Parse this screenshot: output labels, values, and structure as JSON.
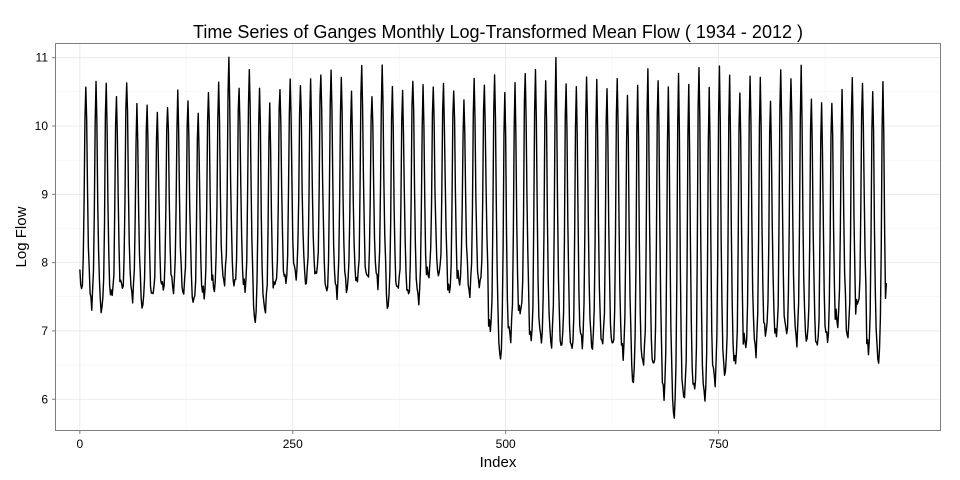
{
  "chart_data": {
    "type": "line",
    "title": "Time Series of Ganges Monthly Log-Transformed Mean Flow ( 1934 - 2012 )",
    "xlabel": "Index",
    "ylabel": "Log Flow",
    "xlim": [
      -28,
      1010
    ],
    "ylim": [
      5.55,
      11.2
    ],
    "x_ticks": [
      0,
      250,
      500,
      750
    ],
    "x_tick_labels": [
      "0",
      "250",
      "500",
      "750"
    ],
    "y_ticks": [
      6,
      7,
      8,
      9,
      10,
      11
    ],
    "y_tick_labels": [
      "6",
      "7",
      "8",
      "9",
      "10",
      "11"
    ],
    "grid": true,
    "series": [
      {
        "n_points": 948,
        "period_months": 12,
        "color": "#000000",
        "annual_peaks": [
          10.6,
          10.6,
          10.6,
          10.45,
          10.7,
          10.25,
          10.3,
          10.2,
          10.35,
          10.45,
          10.35,
          10.2,
          10.55,
          10.6,
          10.95,
          10.6,
          10.85,
          10.55,
          10.25,
          10.6,
          10.7,
          10.6,
          10.6,
          10.8,
          10.85,
          10.7,
          10.45,
          10.9,
          10.5,
          10.85,
          10.55,
          10.5,
          10.75,
          10.55,
          10.55,
          10.6,
          10.6,
          10.35,
          10.65,
          10.6,
          10.8,
          10.5,
          10.55,
          10.8,
          10.85,
          10.7,
          10.9,
          10.65,
          10.6,
          10.75,
          10.6,
          10.55,
          10.75,
          10.45,
          10.55,
          10.8,
          10.75,
          10.55,
          10.75,
          10.55,
          10.95,
          10.55,
          10.85,
          10.7,
          10.55,
          10.75,
          10.65,
          10.35,
          10.85,
          10.75,
          10.8,
          10.4,
          10.35,
          10.4,
          10.45,
          10.7,
          10.65,
          10.55,
          10.6
        ],
        "annual_troughs": [
          7.6,
          7.4,
          7.3,
          7.5,
          7.6,
          7.5,
          7.35,
          7.5,
          7.6,
          7.6,
          7.55,
          7.4,
          7.5,
          7.6,
          7.7,
          7.65,
          7.6,
          7.15,
          7.3,
          7.65,
          7.7,
          7.8,
          7.7,
          7.8,
          7.55,
          7.55,
          7.6,
          7.7,
          7.75,
          7.7,
          7.35,
          7.6,
          7.5,
          7.45,
          7.8,
          7.8,
          7.55,
          7.7,
          7.55,
          7.65,
          7.0,
          6.6,
          6.9,
          7.25,
          6.85,
          6.85,
          6.8,
          6.75,
          6.7,
          6.8,
          6.75,
          6.8,
          6.75,
          6.65,
          6.25,
          6.5,
          6.45,
          6.05,
          5.75,
          6.0,
          6.1,
          6.0,
          6.25,
          6.35,
          6.5,
          6.75,
          6.7,
          6.95,
          6.9,
          6.95,
          6.85,
          6.85,
          6.75,
          6.85,
          7.1,
          6.9,
          7.35,
          6.7,
          6.55
        ],
        "start_value": 7.9,
        "end_value": 7.7
      }
    ]
  }
}
